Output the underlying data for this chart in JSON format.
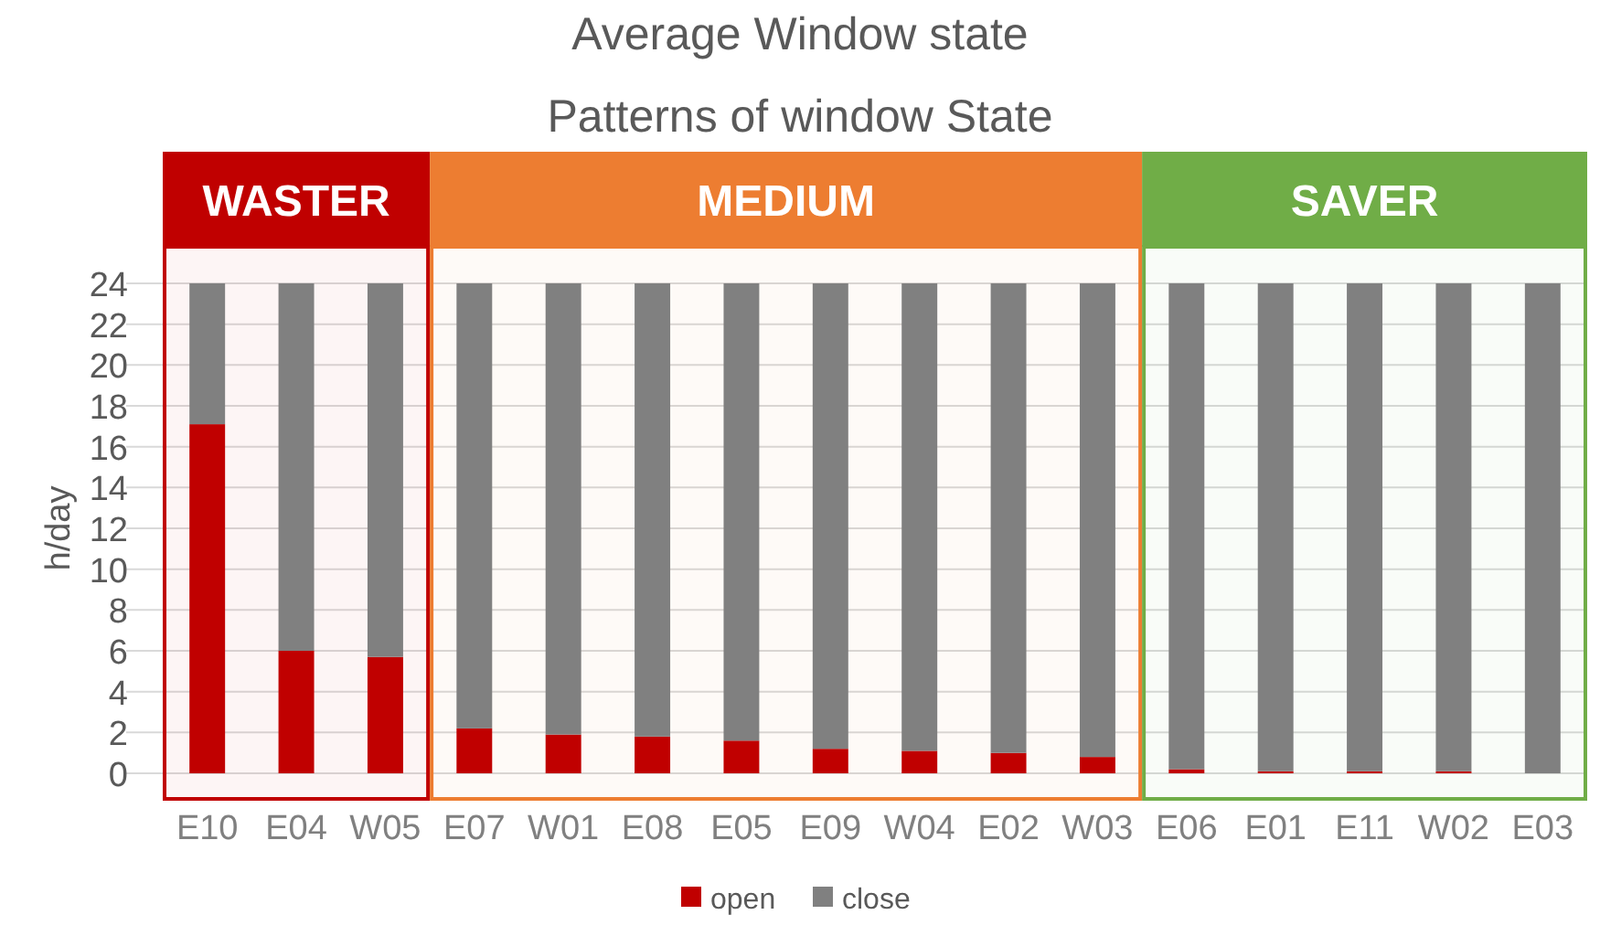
{
  "chart_data": {
    "type": "bar",
    "title": "Average Window state",
    "subtitle": "Patterns of window State",
    "ylabel": "h/day",
    "categories": [
      "E10",
      "E04",
      "W05",
      "E07",
      "W01",
      "E08",
      "E05",
      "E09",
      "W04",
      "E02",
      "W03",
      "E06",
      "E01",
      "E11",
      "W02",
      "E03"
    ],
    "series": [
      {
        "name": "open",
        "color": "#c00000",
        "values": [
          17.1,
          6.0,
          5.7,
          2.2,
          1.9,
          1.8,
          1.6,
          1.2,
          1.1,
          1.0,
          0.8,
          0.2,
          0.1,
          0.1,
          0.1,
          0
        ]
      },
      {
        "name": "close",
        "color": "#808080",
        "values": [
          6.9,
          18.0,
          18.3,
          21.8,
          22.1,
          22.2,
          22.4,
          22.8,
          22.9,
          23.0,
          23.2,
          23.8,
          23.9,
          23.9,
          23.9,
          24
        ]
      }
    ],
    "stacked": true,
    "ylim": [
      0,
      24
    ],
    "yticks": [
      0,
      2,
      4,
      6,
      8,
      10,
      12,
      14,
      16,
      18,
      20,
      22,
      24
    ],
    "grid": "y",
    "legend": "bottom",
    "bands": [
      {
        "axis": "x",
        "from": "E10",
        "to": "W05",
        "label": "WASTER",
        "color": "#c00000"
      },
      {
        "axis": "x",
        "from": "E07",
        "to": "W03",
        "label": "MEDIUM",
        "color": "#ed7d31"
      },
      {
        "axis": "x",
        "from": "E06",
        "to": "E03",
        "label": "SAVER",
        "color": "#70ad47"
      }
    ]
  }
}
